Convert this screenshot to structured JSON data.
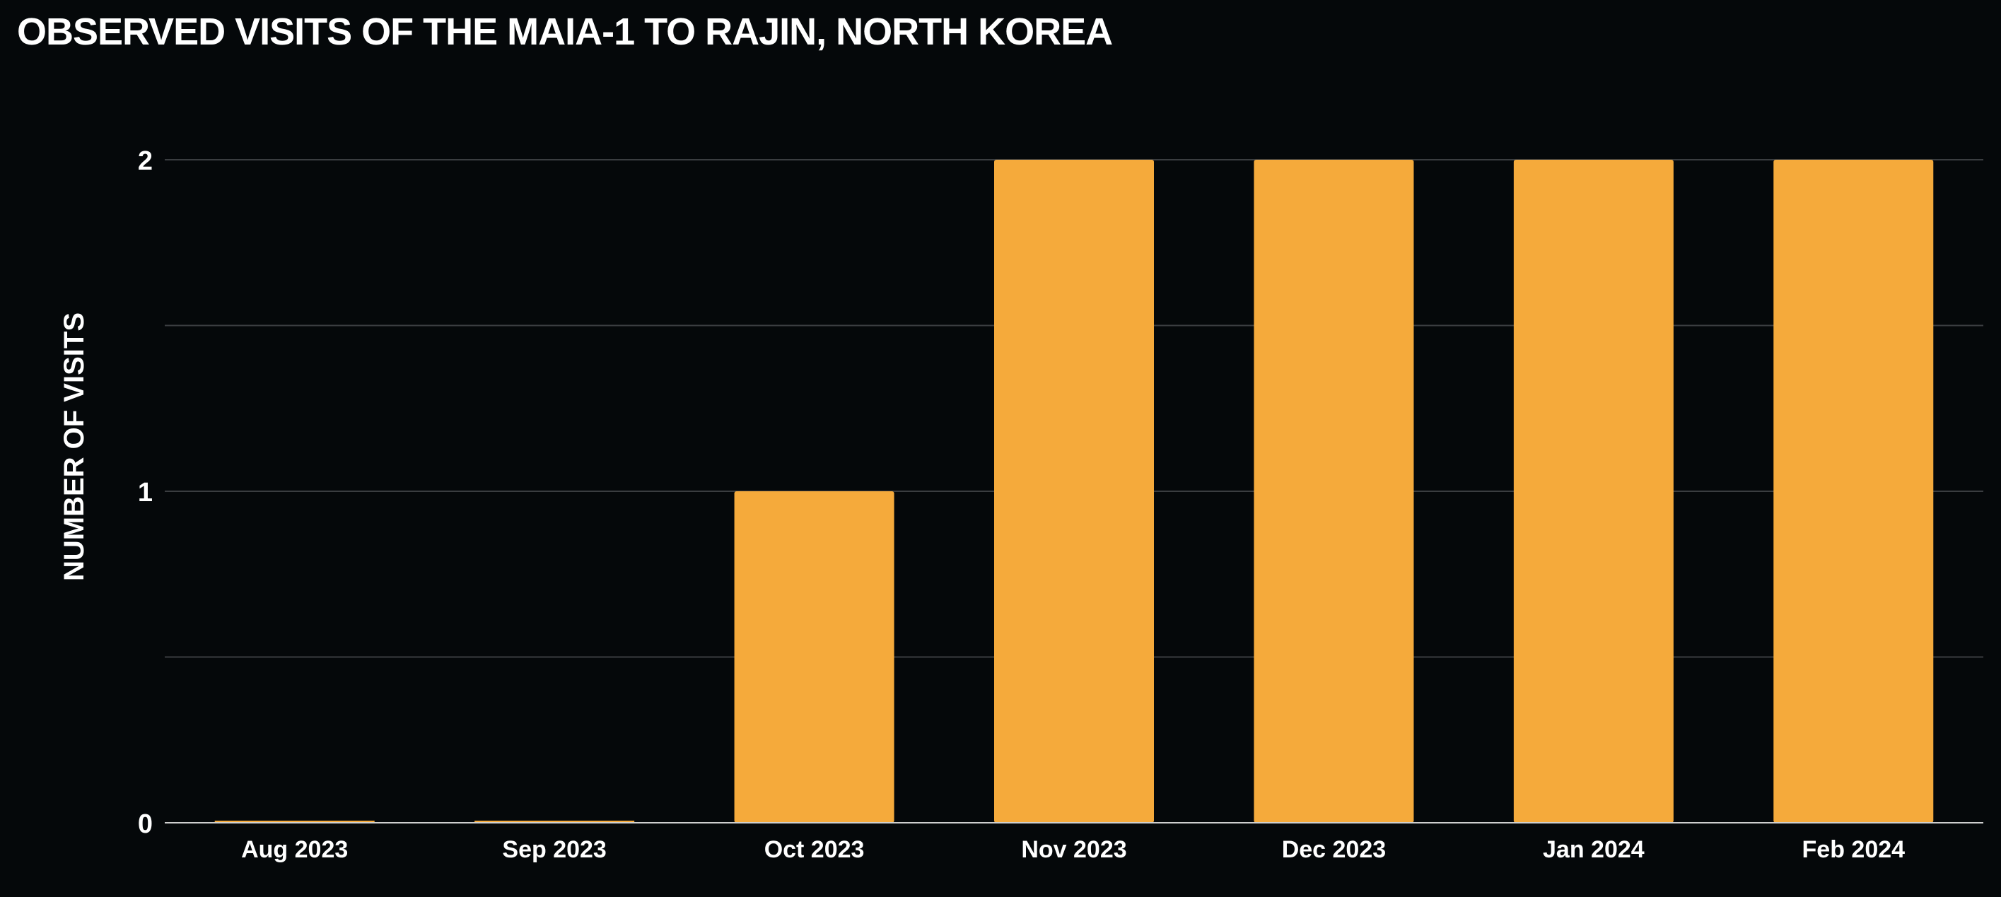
{
  "chart_data": {
    "type": "bar",
    "title": "OBSERVED VISITS OF THE MAIA-1 TO RAJIN, NORTH KOREA",
    "xlabel": "",
    "ylabel": "NUMBER OF VISITS",
    "categories": [
      "Aug 2023",
      "Sep 2023",
      "Oct 2023",
      "Nov 2023",
      "Dec 2023",
      "Jan 2024",
      "Feb 2024"
    ],
    "values": [
      0,
      0,
      1,
      2,
      2,
      2,
      2
    ],
    "ylim": [
      0,
      2
    ],
    "yticks": [
      0,
      1,
      2
    ],
    "grid": true,
    "legend": "none",
    "colors": {
      "background": "#05080a",
      "bar": "#f5aa3b",
      "gridline": "#3a3d40",
      "baseline": "#cfcfcf",
      "text": "#ffffff"
    }
  }
}
